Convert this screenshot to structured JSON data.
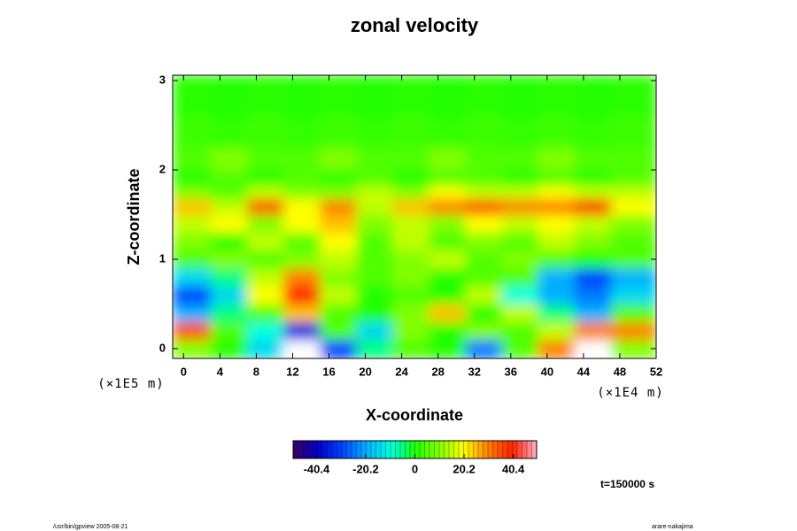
{
  "chart_data": {
    "type": "heatmap",
    "title": "zonal velocity",
    "x_label": "X-coordinate",
    "y_label": "Z-coordinate",
    "x_unit": "(×1E4 m)",
    "y_unit": "(×1E5 m)",
    "time_label": "t=150000 s",
    "footer_left": "/usr/bin/gpview 2005-08-21",
    "footer_right": "arare-nakajima",
    "xlim": [
      -1.2,
      52
    ],
    "ylim": [
      -0.11,
      3.06
    ],
    "xticks": [
      0,
      4,
      8,
      12,
      16,
      20,
      24,
      28,
      32,
      36,
      40,
      44,
      48,
      52
    ],
    "yticks": [
      0,
      1,
      2,
      3
    ],
    "x": [
      1,
      5,
      9,
      13,
      17,
      21,
      25,
      29,
      33,
      37,
      41,
      45,
      49
    ],
    "y": [
      0,
      0.2,
      0.4,
      0.6,
      0.8,
      1.0,
      1.2,
      1.4,
      1.6,
      1.75,
      1.9,
      2.1,
      2.4,
      2.8
    ],
    "z": [
      [
        10,
        0,
        -15,
        -55,
        -30,
        -5,
        5,
        0,
        -25,
        5,
        30,
        55,
        10
      ],
      [
        35,
        5,
        -10,
        -35,
        5,
        -15,
        10,
        0,
        10,
        5,
        15,
        30,
        30
      ],
      [
        -20,
        -5,
        5,
        25,
        5,
        0,
        10,
        25,
        0,
        15,
        -5,
        -20,
        5
      ],
      [
        -30,
        -15,
        20,
        40,
        15,
        0,
        5,
        0,
        15,
        -10,
        -20,
        -25,
        -15
      ],
      [
        -15,
        -5,
        15,
        30,
        10,
        5,
        10,
        0,
        5,
        5,
        -20,
        -30,
        -20
      ],
      [
        5,
        10,
        5,
        10,
        15,
        5,
        10,
        15,
        5,
        10,
        5,
        0,
        5
      ],
      [
        10,
        0,
        15,
        5,
        20,
        5,
        15,
        5,
        10,
        5,
        15,
        10,
        5
      ],
      [
        15,
        20,
        10,
        20,
        25,
        10,
        15,
        10,
        20,
        15,
        20,
        15,
        10
      ],
      [
        25,
        15,
        35,
        20,
        30,
        15,
        25,
        30,
        35,
        30,
        30,
        40,
        20
      ],
      [
        10,
        5,
        15,
        10,
        10,
        15,
        10,
        20,
        15,
        15,
        20,
        15,
        15
      ],
      [
        0,
        5,
        0,
        5,
        0,
        5,
        0,
        5,
        5,
        0,
        5,
        0,
        5
      ],
      [
        5,
        10,
        5,
        5,
        10,
        5,
        5,
        10,
        5,
        5,
        10,
        5,
        5
      ],
      [
        3,
        2,
        3,
        2,
        3,
        2,
        3,
        2,
        3,
        2,
        3,
        2,
        3
      ],
      [
        1,
        0,
        1,
        0,
        1,
        0,
        1,
        0,
        1,
        0,
        1,
        0,
        1
      ]
    ],
    "clim": [
      -50,
      50
    ],
    "cticks": [
      -40.4,
      -20.2,
      0,
      20.2,
      40.4
    ],
    "colorscale": [
      [
        -50,
        "#3a0060"
      ],
      [
        -40,
        "#0000c8"
      ],
      [
        -30,
        "#0040ff"
      ],
      [
        -20,
        "#00b0ff"
      ],
      [
        -10,
        "#00ffe0"
      ],
      [
        -5,
        "#00ff80"
      ],
      [
        0,
        "#20ff00"
      ],
      [
        10,
        "#80ff00"
      ],
      [
        20,
        "#ffff00"
      ],
      [
        30,
        "#ff8000"
      ],
      [
        40,
        "#ff2000"
      ],
      [
        50,
        "#ffb0c0"
      ]
    ],
    "out_of_range_color": "#ffffff"
  }
}
